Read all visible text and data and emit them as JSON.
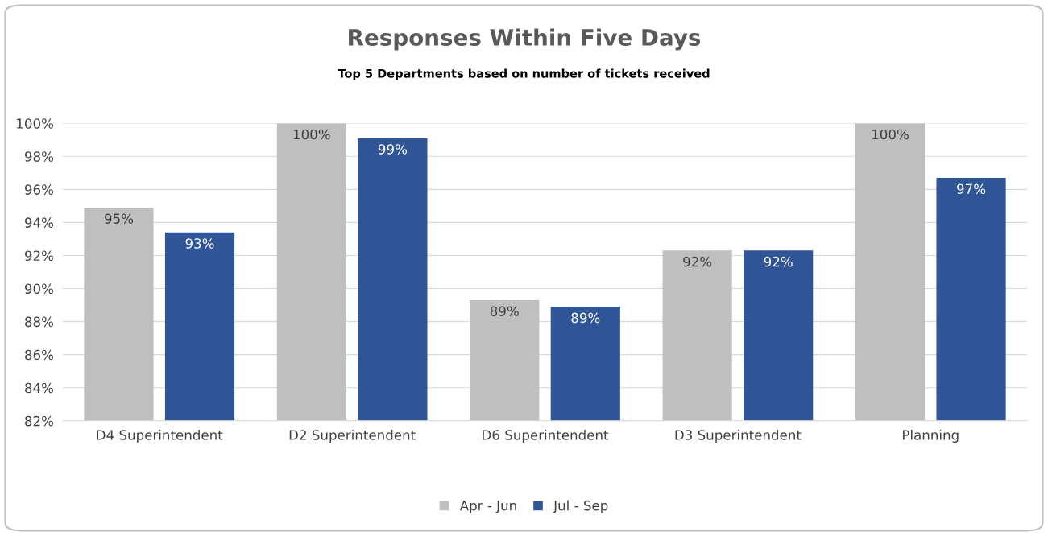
{
  "chart_data": {
    "type": "bar",
    "title": "Responses Within Five Days",
    "subtitle": "Top 5 Departments based on number of tickets received",
    "categories": [
      "D4 Superintendent",
      "D2 Superintendent",
      "D6 Superintendent",
      "D3 Superintendent",
      "Planning"
    ],
    "series": [
      {
        "name": "Apr - Jun",
        "color": "#bfbfbf",
        "values": [
          94.9,
          100,
          89.3,
          92.3,
          100
        ],
        "value_labels": [
          "95%",
          "100%",
          "89%",
          "92%",
          "100%"
        ]
      },
      {
        "name": "Jul - Sep",
        "color": "#2f5597",
        "values": [
          93.4,
          99.1,
          88.9,
          92.3,
          96.7
        ],
        "value_labels": [
          "93%",
          "99%",
          "89%",
          "92%",
          "97%"
        ]
      }
    ],
    "ylim": [
      82,
      100
    ],
    "yticks": [
      {
        "value": 82,
        "label": "82%"
      },
      {
        "value": 84,
        "label": "84%"
      },
      {
        "value": 86,
        "label": "86%"
      },
      {
        "value": 88,
        "label": "88%"
      },
      {
        "value": 90,
        "label": "90%"
      },
      {
        "value": 92,
        "label": "92%"
      },
      {
        "value": 94,
        "label": "94%"
      },
      {
        "value": 96,
        "label": "96%"
      },
      {
        "value": 98,
        "label": "98%"
      },
      {
        "value": 100,
        "label": "100%"
      }
    ],
    "grid": "y",
    "legend": "bottom"
  }
}
